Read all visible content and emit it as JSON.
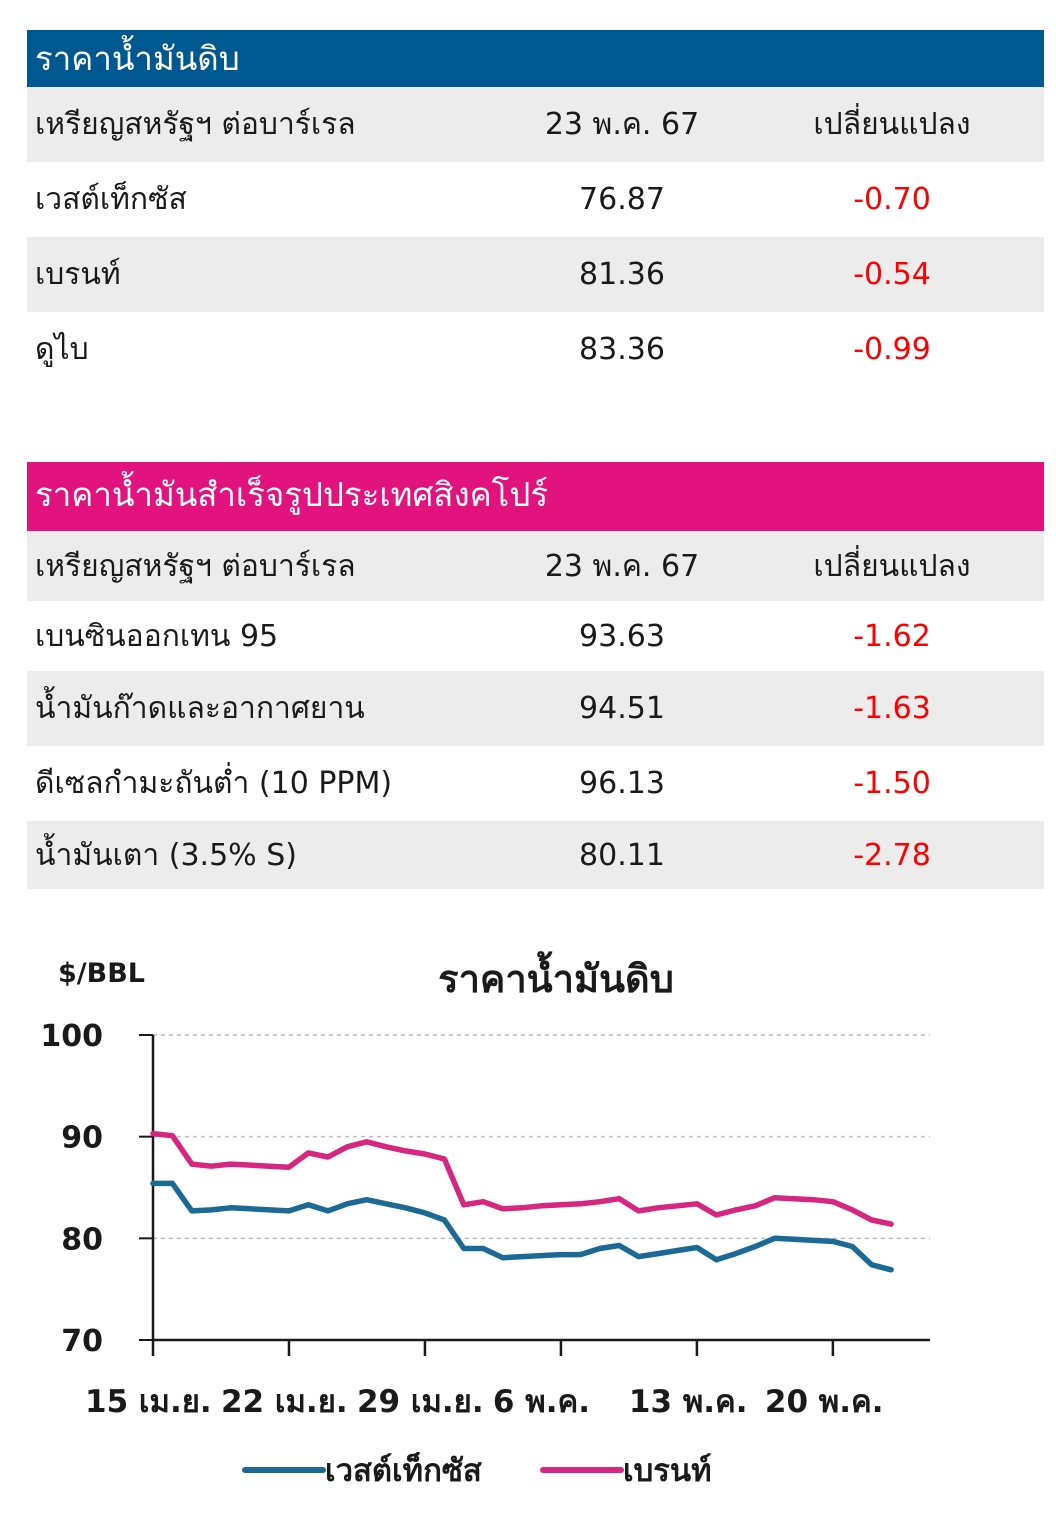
{
  "crude": {
    "title": "ราคาน้ำมันดิบ",
    "header": {
      "label": "เหรียญสหรัฐฯ ต่อบาร์เรล",
      "date": "23 พ.ค. 67",
      "change": "เปลี่ยนแปลง"
    },
    "rows": [
      {
        "name": "เวสต์เท็กซัส",
        "price": "76.87",
        "change": "-0.70"
      },
      {
        "name": "เบรนท์",
        "price": "81.36",
        "change": "-0.54"
      },
      {
        "name": "ดูไบ",
        "price": "83.36",
        "change": "-0.99"
      }
    ]
  },
  "refined": {
    "title": "ราคาน้ำมันสำเร็จรูปประเทศสิงคโปร์",
    "header": {
      "label": "เหรียญสหรัฐฯ ต่อบาร์เรล",
      "date": "23 พ.ค. 67",
      "change": "เปลี่ยนแปลง"
    },
    "rows": [
      {
        "name": "เบนซินออกเทน 95",
        "price": "93.63",
        "change": "-1.62"
      },
      {
        "name": "น้ำมันก๊าดและอากาศยาน",
        "price": "94.51",
        "change": "-1.63"
      },
      {
        "name": "ดีเซลกำมะถันต่ำ (10 PPM)",
        "price": "96.13",
        "change": "-1.50"
      },
      {
        "name": "น้ำมันเตา (3.5% S)",
        "price": "80.11",
        "change": "-2.78"
      }
    ]
  },
  "chart_data": {
    "type": "line",
    "title": "ราคาน้ำมันดิบ",
    "ylabel": "$/BBL",
    "ylim": [
      70,
      100
    ],
    "yticks": [
      70,
      80,
      90,
      100
    ],
    "xlim": [
      0,
      40
    ],
    "xticks": [
      {
        "x": 0,
        "label": "15 เม.ย."
      },
      {
        "x": 7,
        "label": "22 เม.ย."
      },
      {
        "x": 14,
        "label": "29 เม.ย."
      },
      {
        "x": 21,
        "label": "6 พ.ค."
      },
      {
        "x": 28,
        "label": "13 พ.ค."
      },
      {
        "x": 35,
        "label": "20 พ.ค."
      }
    ],
    "grid": "horizontal dashed",
    "legend": "bottom",
    "x": [
      0,
      1,
      2,
      3,
      4,
      5,
      6,
      7,
      8,
      9,
      10,
      11,
      12,
      13,
      14,
      15,
      16,
      17,
      18,
      19,
      20,
      21,
      22,
      23,
      24,
      25,
      26,
      27,
      28,
      29,
      30,
      31,
      32,
      33,
      34,
      35,
      36,
      37,
      38
    ],
    "series": [
      {
        "name": "เวสต์เท็กซัส",
        "color": "#1b6a96",
        "values": [
          85.4,
          85.4,
          82.7,
          82.8,
          83.0,
          82.9,
          82.8,
          82.7,
          83.3,
          82.7,
          83.4,
          83.8,
          83.4,
          83.0,
          82.5,
          81.8,
          79.0,
          79.0,
          78.1,
          78.2,
          78.3,
          78.4,
          78.4,
          79.0,
          79.3,
          78.2,
          78.5,
          78.8,
          79.1,
          77.9,
          78.5,
          79.2,
          80.0,
          79.9,
          79.8,
          79.7,
          79.2,
          77.4,
          76.9
        ]
      },
      {
        "name": "เบรนท์",
        "color": "#d6267f",
        "values": [
          90.3,
          90.1,
          87.3,
          87.1,
          87.3,
          87.2,
          87.1,
          87.0,
          88.4,
          88.0,
          89.0,
          89.5,
          89.0,
          88.6,
          88.3,
          87.8,
          83.3,
          83.6,
          82.9,
          83.0,
          83.2,
          83.3,
          83.4,
          83.6,
          83.9,
          82.7,
          83.0,
          83.2,
          83.4,
          82.3,
          82.8,
          83.2,
          84.0,
          83.9,
          83.8,
          83.6,
          82.8,
          81.8,
          81.4
        ]
      }
    ]
  }
}
